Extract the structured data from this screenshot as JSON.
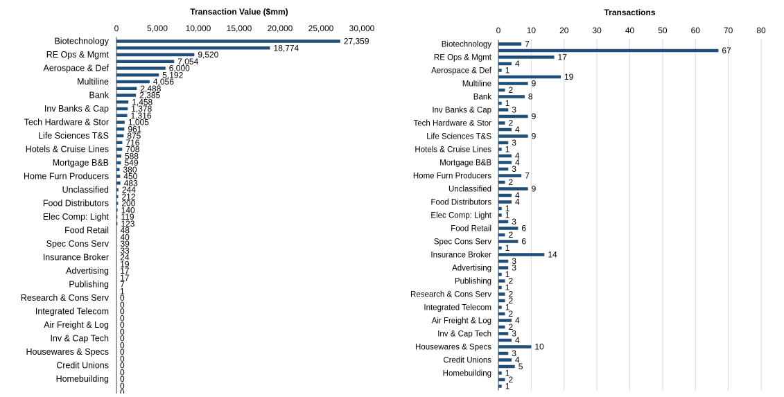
{
  "colors": {
    "bar": "#1f4e79",
    "grid": "#d9d9d9",
    "text": "#000000",
    "axis": "#404040"
  },
  "chart_data": [
    {
      "type": "bar",
      "orientation": "horizontal",
      "title": "Transaction Value ($mm)",
      "xlim": [
        0,
        30000
      ],
      "ticks": [
        0,
        5000,
        10000,
        15000,
        20000,
        25000,
        30000
      ],
      "tick_labels": [
        "0",
        "5,000",
        "10,000",
        "15,000",
        "20,000",
        "25,000",
        "30,000"
      ],
      "grid": false,
      "label_every": 2,
      "categories": [
        "Biotechnology",
        "",
        "RE Ops & Mgmt",
        "",
        "Aerospace & Def",
        "",
        "Multiline",
        "",
        "Bank",
        "",
        "Inv Banks & Cap",
        "",
        "Tech Hardware & Stor",
        "",
        "Life Sciences T&S",
        "",
        "Hotels & Cruise Lines",
        "",
        "Mortgage B&B",
        "",
        "Home Furn Producers",
        "",
        "Unclassified",
        "",
        "Food Distributors",
        "",
        "Elec Comp: Light",
        "",
        "Food Retail",
        "",
        "Spec Cons Serv",
        "",
        "Insurance Broker",
        "",
        "Advertising",
        "",
        "Publishing",
        "",
        "Research & Cons Serv",
        "",
        "Integrated Telecom",
        "",
        "Air Freight & Log",
        "",
        "Inv & Cap Tech",
        "",
        "Housewares & Specs",
        "",
        "Credit Unions",
        "",
        "Homebuilding",
        "",
        ""
      ],
      "values": [
        27359,
        18774,
        9520,
        7054,
        6000,
        5192,
        4056,
        2488,
        2385,
        1458,
        1378,
        1316,
        1005,
        961,
        875,
        716,
        708,
        588,
        549,
        380,
        450,
        483,
        244,
        212,
        200,
        140,
        119,
        123,
        48,
        40,
        39,
        33,
        24,
        19,
        17,
        17,
        7,
        1,
        0,
        0,
        0,
        0,
        0,
        0,
        0,
        0,
        0,
        0,
        0,
        0,
        0,
        0,
        0
      ],
      "value_labels": [
        "27,359",
        "18,774",
        "9,520",
        "7,054",
        "6,000",
        "5,192",
        "4,056",
        "2,488",
        "2,385",
        "1,458",
        "1,378",
        "1,316",
        "1,005",
        "961",
        "875",
        "716",
        "708",
        "588",
        "549",
        "380",
        "450",
        "483",
        "244",
        "212",
        "200",
        "140",
        "119",
        "123",
        "48",
        "40",
        "39",
        "33",
        "24",
        "19",
        "17",
        "17",
        "7",
        "1",
        "0",
        "0",
        "0",
        "0",
        "0",
        "0",
        "0",
        "0",
        "0",
        "0",
        "0",
        "0",
        "0",
        "0",
        "0"
      ]
    },
    {
      "type": "bar",
      "orientation": "horizontal",
      "title": "Transactions",
      "xlim": [
        0,
        80
      ],
      "ticks": [
        0,
        10,
        20,
        30,
        40,
        50,
        60,
        70,
        80
      ],
      "tick_labels": [
        "0",
        "10",
        "20",
        "30",
        "40",
        "50",
        "60",
        "70",
        "80"
      ],
      "grid": true,
      "label_every": 2,
      "categories": [
        "Biotechnology",
        "",
        "RE Ops & Mgmt",
        "",
        "Aerospace & Def",
        "",
        "Multiline",
        "",
        "Bank",
        "",
        "Inv Banks & Cap",
        "",
        "Tech Hardware & Stor",
        "",
        "Life Sciences T&S",
        "",
        "Hotels & Cruise Lines",
        "",
        "Mortgage B&B",
        "",
        "Home Furn Producers",
        "",
        "Unclassified",
        "",
        "Food Distributors",
        "",
        "Elec Comp: Light",
        "",
        "Food Retail",
        "",
        "Spec Cons Serv",
        "",
        "Insurance Broker",
        "",
        "Advertising",
        "",
        "Publishing",
        "",
        "Research & Cons Serv",
        "",
        "Integrated Telecom",
        "",
        "Air Freight & Log",
        "",
        "Inv & Cap Tech",
        "",
        "Housewares & Specs",
        "",
        "Credit Unions",
        "",
        "Homebuilding",
        "",
        ""
      ],
      "values": [
        7,
        67,
        17,
        4,
        1,
        19,
        9,
        2,
        8,
        1,
        3,
        9,
        2,
        4,
        9,
        3,
        1,
        4,
        4,
        3,
        7,
        2,
        9,
        4,
        4,
        1,
        1,
        3,
        6,
        2,
        6,
        1,
        14,
        3,
        3,
        1,
        2,
        1,
        2,
        2,
        1,
        2,
        4,
        2,
        3,
        4,
        10,
        3,
        4,
        5,
        1,
        2,
        1
      ],
      "value_labels": [
        "7",
        "67",
        "17",
        "4",
        "1",
        "19",
        "9",
        "2",
        "8",
        "1",
        "3",
        "9",
        "2",
        "4",
        "9",
        "3",
        "1",
        "4",
        "4",
        "3",
        "7",
        "2",
        "9",
        "4",
        "4",
        "1",
        "1",
        "3",
        "6",
        "2",
        "6",
        "1",
        "14",
        "3",
        "3",
        "1",
        "2",
        "1",
        "2",
        "2",
        "1",
        "2",
        "4",
        "2",
        "3",
        "4",
        "10",
        "3",
        "4",
        "5",
        "1",
        "2",
        "1"
      ]
    }
  ]
}
